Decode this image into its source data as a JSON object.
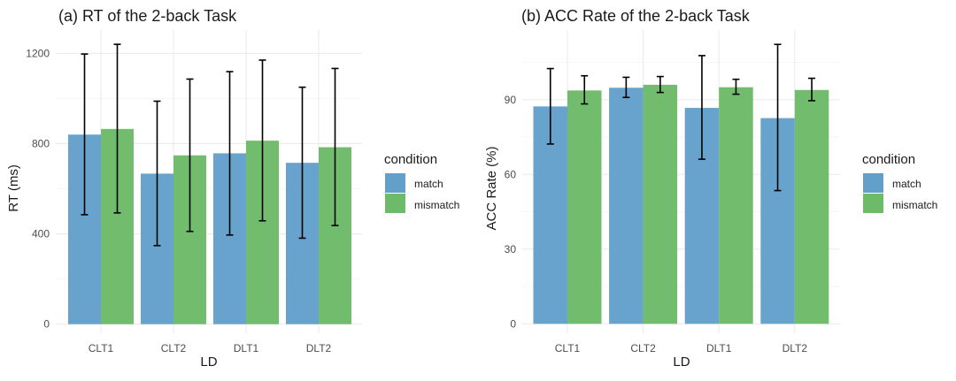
{
  "chart_data": [
    {
      "type": "bar",
      "title": "(a) RT of the 2-back Task",
      "xlabel": "LD",
      "ylabel": "RT (ms)",
      "categories": [
        "CLT1",
        "CLT2",
        "DLT1",
        "DLT2"
      ],
      "yticks": [
        0,
        400,
        800,
        1200
      ],
      "ylim": [
        0,
        1200
      ],
      "grid": true,
      "legend": {
        "title": "condition",
        "position": "right"
      },
      "series": [
        {
          "name": "match",
          "color": "#62a0ca",
          "values": [
            840,
            667,
            757,
            715
          ],
          "err_low": [
            485,
            348,
            395,
            381
          ],
          "err_high": [
            1197,
            988,
            1119,
            1050
          ]
        },
        {
          "name": "mismatch",
          "color": "#6dbb68",
          "values": [
            865,
            748,
            813,
            784
          ],
          "err_low": [
            493,
            411,
            458,
            437
          ],
          "err_high": [
            1240,
            1086,
            1170,
            1133
          ]
        }
      ]
    },
    {
      "type": "bar",
      "title": "(b) ACC Rate of the 2-back Task",
      "xlabel": "LD",
      "ylabel": "ACC Rate (%)",
      "categories": [
        "CLT1",
        "CLT2",
        "DLT1",
        "DLT2"
      ],
      "yticks": [
        0,
        30,
        60,
        90
      ],
      "ylim": [
        0,
        90
      ],
      "grid": true,
      "legend": {
        "title": "condition",
        "position": "right"
      },
      "series": [
        {
          "name": "match",
          "color": "#62a0ca",
          "values": [
            87.3,
            94.8,
            86.7,
            82.6
          ],
          "err_low": [
            72.2,
            90.9,
            66.1,
            53.5
          ],
          "err_high": [
            102.5,
            99.0,
            107.7,
            112.2
          ]
        },
        {
          "name": "mismatch",
          "color": "#6dbb68",
          "values": [
            93.7,
            96.0,
            95.0,
            93.9
          ],
          "err_low": [
            88.3,
            92.9,
            92.2,
            89.6
          ],
          "err_high": [
            99.6,
            99.3,
            98.2,
            98.6
          ]
        }
      ]
    }
  ]
}
